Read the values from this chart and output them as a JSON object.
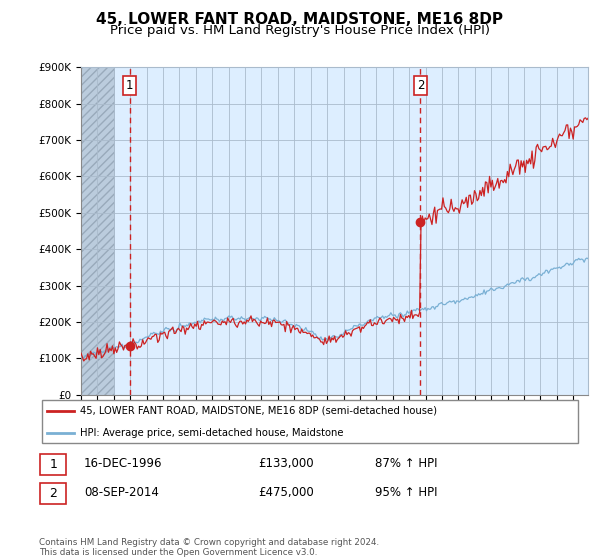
{
  "title": "45, LOWER FANT ROAD, MAIDSTONE, ME16 8DP",
  "subtitle": "Price paid vs. HM Land Registry's House Price Index (HPI)",
  "ylim": [
    0,
    900000
  ],
  "yticks": [
    0,
    100000,
    200000,
    300000,
    400000,
    500000,
    600000,
    700000,
    800000,
    900000
  ],
  "ytick_labels": [
    "£0",
    "£100K",
    "£200K",
    "£300K",
    "£400K",
    "£500K",
    "£600K",
    "£700K",
    "£800K",
    "£900K"
  ],
  "t1": 1996.96,
  "p1": 133000,
  "t2": 2014.69,
  "p2": 475000,
  "hpi_color": "#7ab0d4",
  "price_color": "#cc2222",
  "vline_color": "#cc2222",
  "bg_color": "#ddeeff",
  "hatch_color": "#bbccdd",
  "grid_color": "#aabbcc",
  "legend_label_price": "45, LOWER FANT ROAD, MAIDSTONE, ME16 8DP (semi-detached house)",
  "legend_label_hpi": "HPI: Average price, semi-detached house, Maidstone",
  "table_row1": [
    "1",
    "16-DEC-1996",
    "£133,000",
    "87% ↑ HPI"
  ],
  "table_row2": [
    "2",
    "08-SEP-2014",
    "£475,000",
    "95% ↑ HPI"
  ],
  "footnote": "Contains HM Land Registry data © Crown copyright and database right 2024.\nThis data is licensed under the Open Government Licence v3.0.",
  "title_fontsize": 11,
  "subtitle_fontsize": 9.5
}
